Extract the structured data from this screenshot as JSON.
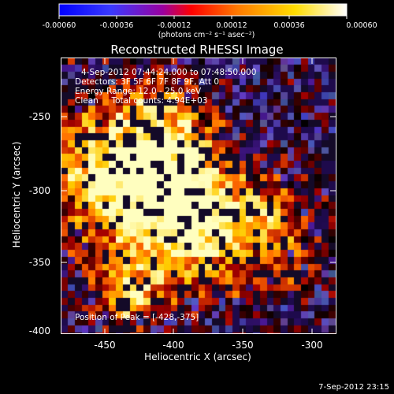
{
  "colorbar": {
    "tick_labels": [
      "-0.00060",
      "-0.00036",
      "-0.00012",
      "0.00012",
      "0.00036",
      "0.00060"
    ],
    "unit_label": "(photons cm⁻² s⁻¹ asec⁻²)",
    "colormap": [
      "#0000ff",
      "#3333ff",
      "#ff0000",
      "#ff9900",
      "#ffff00",
      "#ffffff"
    ]
  },
  "plot": {
    "title": "Reconstructed RHESSI Image",
    "xlabel": "Heliocentric X (arcsec)",
    "ylabel": "Heliocentric Y (arcsec)",
    "x_ticks": [
      "-450",
      "-400",
      "-350",
      "-300"
    ],
    "y_ticks": [
      "-250",
      "-300",
      "-350",
      "-400"
    ],
    "xlim": [
      -480,
      -288
    ],
    "ylim": [
      -403,
      -223
    ]
  },
  "info": {
    "time_range": "4-Sep-2012 07:44:24.000 to 07:48:50.000",
    "detectors": "Detectors: 3F 5F 6F 7F 8F 9F, Att 0",
    "energy_range": "Energy Range: 12.0 - 25.0 keV",
    "method_counts": "Clean     Total counts: 4.94E+03",
    "peak": "Position of Peak = [-428,-375]"
  },
  "footer": {
    "timestamp": "7-Sep-2012 23:15"
  },
  "map_colors": {
    "background": "#4d1a99",
    "blob_stops": [
      "#000000",
      "#a40000",
      "#ff6a00",
      "#ffcc00",
      "#ffffc0"
    ]
  }
}
